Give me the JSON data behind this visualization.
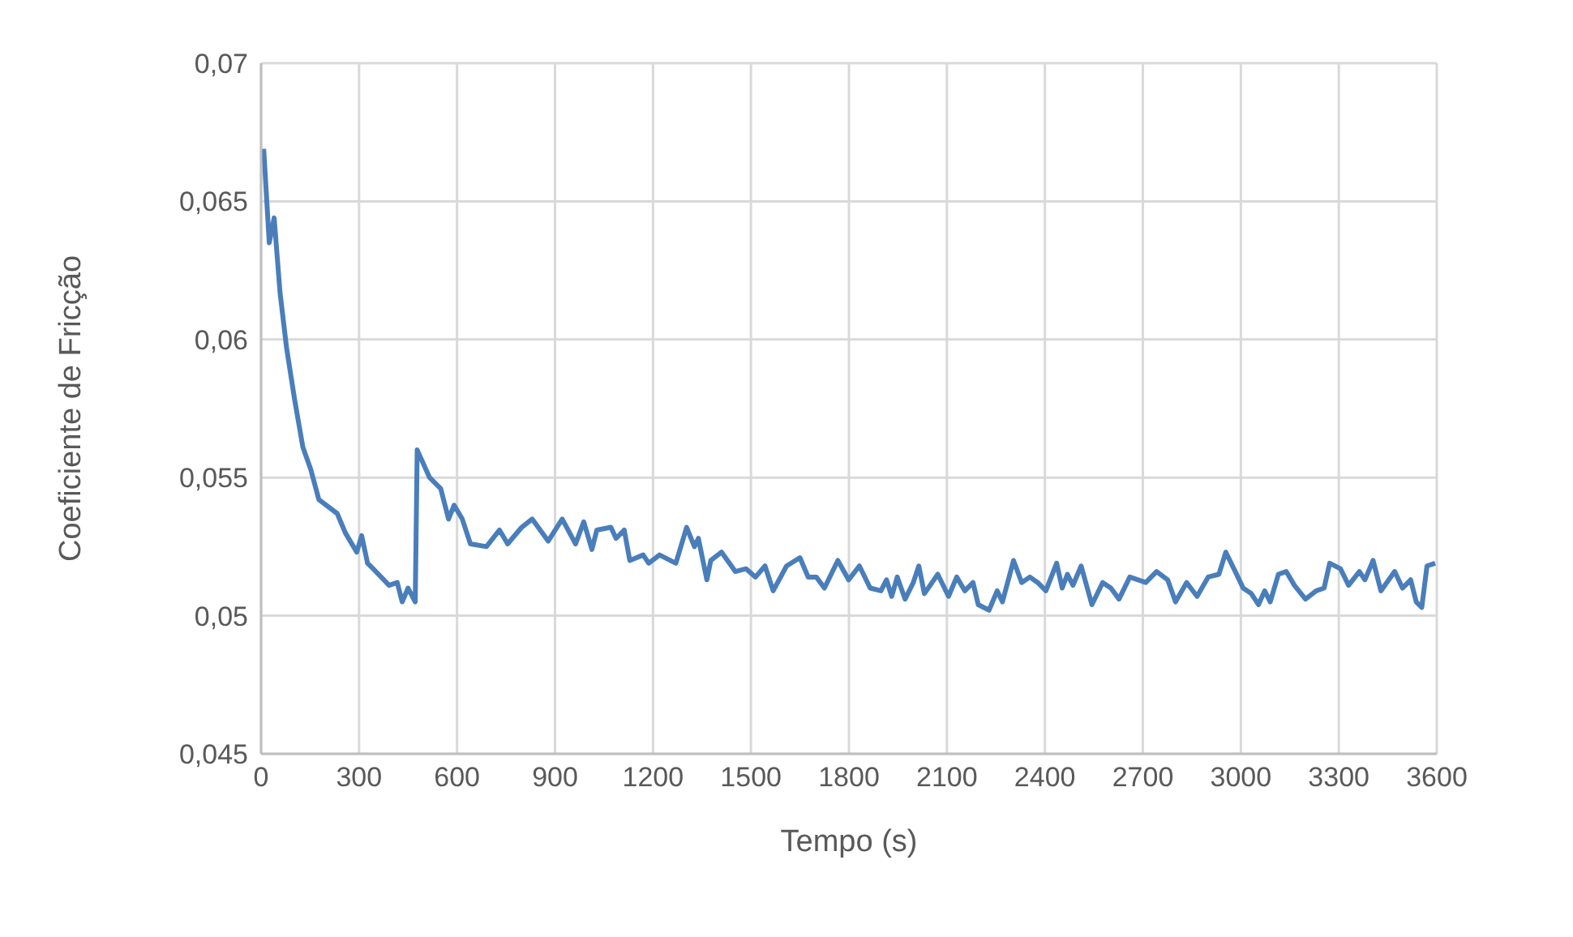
{
  "chart_data": {
    "type": "line",
    "xlabel": "Tempo (s)",
    "ylabel": "Coeficiente de Fricção",
    "xlim": [
      0,
      3600
    ],
    "xticks": [
      0,
      300,
      600,
      900,
      1200,
      1500,
      1800,
      2100,
      2400,
      2700,
      3000,
      3300,
      3600
    ],
    "ylim": [
      0.045,
      0.07
    ],
    "yticks": [
      {
        "value": 0.045,
        "label": "0,045"
      },
      {
        "value": 0.05,
        "label": "0,05"
      },
      {
        "value": 0.055,
        "label": "0,055"
      },
      {
        "value": 0.06,
        "label": "0,06"
      },
      {
        "value": 0.065,
        "label": "0,065"
      },
      {
        "value": 0.07,
        "label": "0,07"
      }
    ],
    "grid": true,
    "marker": "none",
    "line_style": "solid",
    "x": [
      8,
      25,
      40,
      58,
      78,
      103,
      128,
      152,
      177,
      233,
      258,
      293,
      308,
      326,
      343,
      392,
      417,
      432,
      450,
      472,
      478,
      516,
      550,
      574,
      591,
      616,
      641,
      690,
      730,
      755,
      798,
      830,
      879,
      922,
      963,
      988,
      1013,
      1028,
      1071,
      1087,
      1112,
      1129,
      1170,
      1187,
      1220,
      1270,
      1303,
      1327,
      1339,
      1365,
      1377,
      1410,
      1452,
      1485,
      1514,
      1543,
      1568,
      1609,
      1650,
      1675,
      1700,
      1725,
      1766,
      1799,
      1832,
      1865,
      1898,
      1915,
      1931,
      1948,
      1972,
      1997,
      2014,
      2031,
      2072,
      2105,
      2130,
      2155,
      2180,
      2196,
      2229,
      2254,
      2270,
      2304,
      2329,
      2354,
      2378,
      2403,
      2436,
      2453,
      2469,
      2486,
      2511,
      2544,
      2577,
      2602,
      2627,
      2660,
      2709,
      2742,
      2776,
      2800,
      2834,
      2866,
      2900,
      2933,
      2954,
      2983,
      3007,
      3032,
      3054,
      3073,
      3090,
      3115,
      3139,
      3164,
      3198,
      3231,
      3255,
      3272,
      3305,
      3330,
      3363,
      3380,
      3405,
      3429,
      3471,
      3495,
      3520,
      3537,
      3554,
      3570,
      3595
    ],
    "series": [
      {
        "color": "#4a7ebb",
        "values": [
          0.0669,
          0.0635,
          0.0644,
          0.0617,
          0.0597,
          0.0578,
          0.0561,
          0.0553,
          0.0542,
          0.0537,
          0.053,
          0.0523,
          0.0529,
          0.0519,
          0.0517,
          0.0511,
          0.0512,
          0.0505,
          0.051,
          0.0505,
          0.056,
          0.055,
          0.0546,
          0.0535,
          0.054,
          0.0535,
          0.0526,
          0.0525,
          0.0531,
          0.0526,
          0.0532,
          0.0535,
          0.0527,
          0.0535,
          0.0526,
          0.0534,
          0.0524,
          0.0531,
          0.0532,
          0.0528,
          0.0531,
          0.052,
          0.0522,
          0.0519,
          0.0522,
          0.0519,
          0.0532,
          0.0525,
          0.0528,
          0.0513,
          0.052,
          0.0523,
          0.0516,
          0.0517,
          0.0514,
          0.0518,
          0.0509,
          0.0518,
          0.0521,
          0.0514,
          0.0514,
          0.051,
          0.052,
          0.0513,
          0.0518,
          0.051,
          0.0509,
          0.0513,
          0.0507,
          0.0514,
          0.0506,
          0.0512,
          0.0518,
          0.0508,
          0.0515,
          0.0507,
          0.0514,
          0.0509,
          0.0512,
          0.0504,
          0.0502,
          0.0509,
          0.0505,
          0.052,
          0.0512,
          0.0514,
          0.0512,
          0.0509,
          0.0519,
          0.051,
          0.0515,
          0.0511,
          0.0518,
          0.0504,
          0.0512,
          0.051,
          0.0506,
          0.0514,
          0.0512,
          0.0516,
          0.0513,
          0.0505,
          0.0512,
          0.0507,
          0.0514,
          0.0515,
          0.0523,
          0.0516,
          0.051,
          0.0508,
          0.0504,
          0.0509,
          0.0505,
          0.0515,
          0.0516,
          0.0511,
          0.0506,
          0.0509,
          0.051,
          0.0519,
          0.0517,
          0.0511,
          0.0516,
          0.0513,
          0.052,
          0.0509,
          0.0516,
          0.051,
          0.0513,
          0.0505,
          0.0503,
          0.0518,
          0.0519
        ]
      }
    ]
  }
}
